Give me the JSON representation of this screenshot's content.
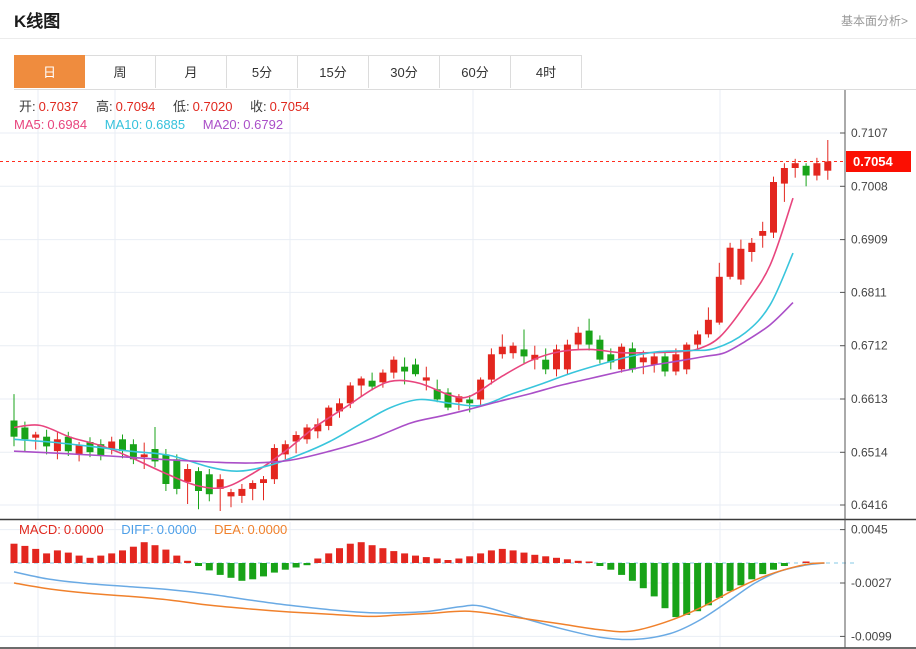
{
  "header": {
    "title": "K线图",
    "link": "基本面分析>"
  },
  "tabs": {
    "items": [
      "日",
      "周",
      "月",
      "5分",
      "15分",
      "30分",
      "60分",
      "4时"
    ],
    "selected": "日"
  },
  "legend": {
    "open_label": "开:",
    "open": "0.7037",
    "high_label": "高:",
    "high": "0.7094",
    "low_label": "低:",
    "low": "0.7020",
    "close_label": "收:",
    "close": "0.7054",
    "ma5_label": "MA5:",
    "ma5": "0.6984",
    "ma10_label": "MA10:",
    "ma10": "0.6885",
    "ma20_label": "MA20:",
    "ma20": "0.6792",
    "macd_label": "MACD:",
    "macd": "0.0000",
    "diff_label": "DIFF:",
    "diff": "0.0000",
    "dea_label": "DEA:",
    "dea": "0.0000"
  },
  "colors": {
    "up": "#e3261f",
    "down": "#18a318",
    "ma5": "#e8457e",
    "ma10": "#38c5dc",
    "ma20": "#aa4fc8",
    "diff": "#6aaae4",
    "dea": "#f0812c",
    "marker_bg": "#fb0f02",
    "marker_text": "#ffffff",
    "tab_accent": "#ef8c3e",
    "grid": "#e9eef4",
    "axis": "#555555",
    "divider": "#3c3c3c",
    "price_line": "#ff2d1e",
    "zero_line": "#85c9e6"
  },
  "chart_data": [
    {
      "type": "candlestick",
      "panel": "main",
      "y_axis_ticks": [
        0.7107,
        0.7008,
        0.6909,
        0.6811,
        0.6712,
        0.6613,
        0.6514,
        0.6416
      ],
      "last_price": 0.7054,
      "ohlc": [
        [
          0.6573,
          0.6622,
          0.6525,
          0.6543
        ],
        [
          0.656,
          0.6571,
          0.6516,
          0.6538
        ],
        [
          0.6541,
          0.6552,
          0.6519,
          0.6547
        ],
        [
          0.6543,
          0.6556,
          0.651,
          0.6525
        ],
        [
          0.6516,
          0.6551,
          0.6501,
          0.6538
        ],
        [
          0.6543,
          0.6552,
          0.6507,
          0.6516
        ],
        [
          0.651,
          0.6533,
          0.6497,
          0.6527
        ],
        [
          0.6533,
          0.6542,
          0.6505,
          0.6514
        ],
        [
          0.6529,
          0.6538,
          0.6499,
          0.6508
        ],
        [
          0.652,
          0.6543,
          0.651,
          0.6534
        ],
        [
          0.6538,
          0.6547,
          0.6503,
          0.6516
        ],
        [
          0.6529,
          0.6538,
          0.6492,
          0.6501
        ],
        [
          0.6505,
          0.6532,
          0.6483,
          0.651
        ],
        [
          0.652,
          0.6561,
          0.6486,
          0.6497
        ],
        [
          0.651,
          0.652,
          0.6442,
          0.6455
        ],
        [
          0.6501,
          0.651,
          0.6436,
          0.6446
        ],
        [
          0.6459,
          0.6492,
          0.6418,
          0.6483
        ],
        [
          0.6479,
          0.6486,
          0.6408,
          0.6442
        ],
        [
          0.6473,
          0.6483,
          0.6423,
          0.6436
        ],
        [
          0.6446,
          0.6473,
          0.6405,
          0.6464
        ],
        [
          0.6432,
          0.6446,
          0.6412,
          0.644
        ],
        [
          0.6433,
          0.6455,
          0.642,
          0.6446
        ],
        [
          0.6446,
          0.6462,
          0.6425,
          0.6457
        ],
        [
          0.6457,
          0.647,
          0.6425,
          0.6464
        ],
        [
          0.6464,
          0.6529,
          0.6455,
          0.6522
        ],
        [
          0.651,
          0.6536,
          0.6501,
          0.6529
        ],
        [
          0.6534,
          0.6553,
          0.6512,
          0.6546
        ],
        [
          0.6538,
          0.6566,
          0.653,
          0.656
        ],
        [
          0.6553,
          0.6577,
          0.654,
          0.6566
        ],
        [
          0.6563,
          0.6601,
          0.6555,
          0.6597
        ],
        [
          0.659,
          0.6614,
          0.6578,
          0.6605
        ],
        [
          0.6605,
          0.6644,
          0.6596,
          0.6638
        ],
        [
          0.6638,
          0.6655,
          0.6618,
          0.6651
        ],
        [
          0.6647,
          0.6662,
          0.6629,
          0.6636
        ],
        [
          0.6644,
          0.6668,
          0.6634,
          0.6662
        ],
        [
          0.6662,
          0.6692,
          0.6651,
          0.6686
        ],
        [
          0.6673,
          0.669,
          0.664,
          0.6664
        ],
        [
          0.6677,
          0.6688,
          0.6655,
          0.6659
        ],
        [
          0.6647,
          0.6673,
          0.6629,
          0.6653
        ],
        [
          0.6631,
          0.6649,
          0.6607,
          0.6612
        ],
        [
          0.6625,
          0.6633,
          0.6592,
          0.6597
        ],
        [
          0.6607,
          0.6622,
          0.6592,
          0.6618
        ],
        [
          0.6612,
          0.662,
          0.6588,
          0.6605
        ],
        [
          0.6612,
          0.6653,
          0.6601,
          0.6649
        ],
        [
          0.6649,
          0.6707,
          0.664,
          0.6696
        ],
        [
          0.6696,
          0.6733,
          0.6688,
          0.671
        ],
        [
          0.6698,
          0.6718,
          0.6688,
          0.6712
        ],
        [
          0.6705,
          0.6742,
          0.6677,
          0.6692
        ],
        [
          0.6686,
          0.6712,
          0.6668,
          0.6695
        ],
        [
          0.6686,
          0.6707,
          0.6659,
          0.6668
        ],
        [
          0.6668,
          0.6714,
          0.6655,
          0.6705
        ],
        [
          0.6668,
          0.6723,
          0.6659,
          0.6714
        ],
        [
          0.6714,
          0.6747,
          0.6705,
          0.6736
        ],
        [
          0.674,
          0.6762,
          0.6703,
          0.6714
        ],
        [
          0.6723,
          0.6731,
          0.6679,
          0.6686
        ],
        [
          0.6696,
          0.6707,
          0.6668,
          0.6681
        ],
        [
          0.6668,
          0.6716,
          0.6662,
          0.671
        ],
        [
          0.6707,
          0.6718,
          0.6662,
          0.6668
        ],
        [
          0.6681,
          0.6703,
          0.6659,
          0.669
        ],
        [
          0.6677,
          0.67,
          0.6662,
          0.6692
        ],
        [
          0.6692,
          0.6703,
          0.6655,
          0.6664
        ],
        [
          0.6664,
          0.6707,
          0.6657,
          0.6696
        ],
        [
          0.6668,
          0.6718,
          0.6659,
          0.6714
        ],
        [
          0.6714,
          0.674,
          0.6705,
          0.6733
        ],
        [
          0.6733,
          0.6783,
          0.6727,
          0.676
        ],
        [
          0.6755,
          0.6866,
          0.6751,
          0.684
        ],
        [
          0.684,
          0.6903,
          0.6835,
          0.6894
        ],
        [
          0.6835,
          0.6909,
          0.6825,
          0.6892
        ],
        [
          0.6886,
          0.6912,
          0.6868,
          0.6903
        ],
        [
          0.6916,
          0.6942,
          0.6894,
          0.6925
        ],
        [
          0.6922,
          0.7026,
          0.6912,
          0.7016
        ],
        [
          0.7013,
          0.7051,
          0.6979,
          0.7042
        ],
        [
          0.7042,
          0.7059,
          0.7024,
          0.7051
        ],
        [
          0.7046,
          0.7051,
          0.7008,
          0.7028
        ],
        [
          0.7028,
          0.7061,
          0.7019,
          0.7051
        ],
        [
          0.7037,
          0.7094,
          0.702,
          0.7054
        ]
      ],
      "overlays": [
        {
          "name": "MA5",
          "value": 0.6984,
          "points": [
            [
              0,
              0.656
            ],
            [
              2.4,
              0.6564
            ],
            [
              5.2,
              0.6542
            ],
            [
              7.9,
              0.6527
            ],
            [
              10.7,
              0.6505
            ],
            [
              13.5,
              0.6479
            ],
            [
              16.7,
              0.6453
            ],
            [
              19.4,
              0.6449
            ],
            [
              22.2,
              0.6477
            ],
            [
              25,
              0.6516
            ],
            [
              27.7,
              0.656
            ],
            [
              30.5,
              0.6597
            ],
            [
              33.3,
              0.6634
            ],
            [
              35.1,
              0.6647
            ],
            [
              37.4,
              0.6642
            ],
            [
              40.2,
              0.662
            ],
            [
              42,
              0.6618
            ],
            [
              44.8,
              0.6653
            ],
            [
              47.6,
              0.6684
            ],
            [
              50.3,
              0.6701
            ],
            [
              53.1,
              0.6705
            ],
            [
              55.9,
              0.6699
            ],
            [
              58.6,
              0.6699
            ],
            [
              61.4,
              0.6701
            ],
            [
              63.2,
              0.6707
            ],
            [
              65.1,
              0.6729
            ],
            [
              67.4,
              0.6788
            ],
            [
              69.7,
              0.6862
            ],
            [
              71.8,
              0.6986
            ]
          ]
        },
        {
          "name": "MA10",
          "value": 0.6885,
          "points": [
            [
              0,
              0.6538
            ],
            [
              3.3,
              0.6533
            ],
            [
              7,
              0.6525
            ],
            [
              10.7,
              0.6516
            ],
            [
              14.4,
              0.6508
            ],
            [
              18.1,
              0.6486
            ],
            [
              20.8,
              0.6479
            ],
            [
              23.6,
              0.649
            ],
            [
              26.4,
              0.651
            ],
            [
              29.1,
              0.6534
            ],
            [
              31.9,
              0.6566
            ],
            [
              34.7,
              0.6597
            ],
            [
              37.4,
              0.6612
            ],
            [
              40.2,
              0.6605
            ],
            [
              43,
              0.6601
            ],
            [
              45.7,
              0.6621
            ],
            [
              48.5,
              0.664
            ],
            [
              51.2,
              0.666
            ],
            [
              54,
              0.6677
            ],
            [
              56.8,
              0.6692
            ],
            [
              59.5,
              0.6701
            ],
            [
              62.3,
              0.6703
            ],
            [
              64.6,
              0.6707
            ],
            [
              67.4,
              0.6736
            ],
            [
              69.7,
              0.6788
            ],
            [
              71.8,
              0.6884
            ]
          ]
        },
        {
          "name": "MA20",
          "value": 0.6792,
          "points": [
            [
              0,
              0.6516
            ],
            [
              4.2,
              0.6512
            ],
            [
              8.8,
              0.6507
            ],
            [
              13.5,
              0.6501
            ],
            [
              18.1,
              0.6496
            ],
            [
              21.8,
              0.6494
            ],
            [
              25.4,
              0.6499
            ],
            [
              29.1,
              0.6516
            ],
            [
              32.8,
              0.6538
            ],
            [
              36.5,
              0.6568
            ],
            [
              39.3,
              0.6581
            ],
            [
              42,
              0.6594
            ],
            [
              44.8,
              0.6609
            ],
            [
              47.6,
              0.6623
            ],
            [
              50.3,
              0.6638
            ],
            [
              53.1,
              0.6651
            ],
            [
              55.9,
              0.6664
            ],
            [
              58.6,
              0.6675
            ],
            [
              61.4,
              0.6684
            ],
            [
              63.7,
              0.6692
            ],
            [
              65.5,
              0.6699
            ],
            [
              67.4,
              0.672
            ],
            [
              69.7,
              0.6751
            ],
            [
              71.8,
              0.6792
            ]
          ]
        }
      ]
    },
    {
      "type": "bar",
      "panel": "macd",
      "y_axis_ticks": [
        0.0045,
        -0.0027,
        -0.0099
      ],
      "zero_line": 0,
      "histogram": [
        0.0026,
        0.0023,
        0.0019,
        0.0013,
        0.0017,
        0.0014,
        0.001,
        0.0007,
        0.001,
        0.0013,
        0.0017,
        0.0022,
        0.0028,
        0.0024,
        0.0018,
        0.001,
        0.0003,
        -0.0004,
        -0.001,
        -0.0016,
        -0.002,
        -0.0024,
        -0.0022,
        -0.0018,
        -0.0013,
        -0.0009,
        -0.0006,
        -0.0003,
        0.0006,
        0.0013,
        0.002,
        0.0026,
        0.0028,
        0.0024,
        0.002,
        0.0016,
        0.0013,
        0.001,
        0.0008,
        0.0006,
        0.0004,
        0.0006,
        0.0009,
        0.0013,
        0.0017,
        0.0019,
        0.0017,
        0.0014,
        0.0011,
        0.0009,
        0.0007,
        0.0005,
        0.0003,
        0.0001,
        -0.0004,
        -0.0009,
        -0.0016,
        -0.0024,
        -0.0034,
        -0.0045,
        -0.0061,
        -0.0073,
        -0.007,
        -0.0065,
        -0.0057,
        -0.0047,
        -0.0038,
        -0.003,
        -0.0022,
        -0.0015,
        -0.0009,
        -0.0004,
        0.0,
        0.0001,
        0.0,
        0.0
      ],
      "lines": [
        {
          "name": "DIFF",
          "value": 0.0,
          "points": [
            [
              0,
              -0.0012
            ],
            [
              3.3,
              -0.0022
            ],
            [
              7,
              -0.0028
            ],
            [
              10.7,
              -0.0032
            ],
            [
              14.4,
              -0.0036
            ],
            [
              18.1,
              -0.0042
            ],
            [
              21.8,
              -0.005
            ],
            [
              25.4,
              -0.0057
            ],
            [
              29.1,
              -0.0063
            ],
            [
              32.8,
              -0.0067
            ],
            [
              35.6,
              -0.0067
            ],
            [
              38.3,
              -0.0065
            ],
            [
              41.1,
              -0.0059
            ],
            [
              43,
              -0.0058
            ],
            [
              46.6,
              -0.0073
            ],
            [
              50.3,
              -0.0088
            ],
            [
              54,
              -0.01
            ],
            [
              57.2,
              -0.0103
            ],
            [
              60.5,
              -0.0095
            ],
            [
              63.2,
              -0.0077
            ],
            [
              66,
              -0.005
            ],
            [
              68.3,
              -0.0027
            ],
            [
              70.6,
              -0.0011
            ],
            [
              72.9,
              -0.0003
            ],
            [
              74.7,
              0
            ]
          ]
        },
        {
          "name": "DEA",
          "value": 0.0,
          "points": [
            [
              0,
              -0.0027
            ],
            [
              3.3,
              -0.0035
            ],
            [
              7,
              -0.0041
            ],
            [
              10.7,
              -0.0045
            ],
            [
              14.4,
              -0.005
            ],
            [
              18.1,
              -0.0057
            ],
            [
              21.8,
              -0.0062
            ],
            [
              25.4,
              -0.0066
            ],
            [
              29.1,
              -0.0069
            ],
            [
              32.8,
              -0.0072
            ],
            [
              35.6,
              -0.007
            ],
            [
              38.3,
              -0.0068
            ],
            [
              42,
              -0.0065
            ],
            [
              46.6,
              -0.0074
            ],
            [
              50.3,
              -0.0082
            ],
            [
              54,
              -0.009
            ],
            [
              56.8,
              -0.0092
            ],
            [
              60,
              -0.008
            ],
            [
              63.2,
              -0.0061
            ],
            [
              66,
              -0.0039
            ],
            [
              68.8,
              -0.002
            ],
            [
              71.5,
              -0.0007
            ],
            [
              73.4,
              -0.0001
            ],
            [
              74.7,
              0
            ]
          ]
        }
      ]
    }
  ]
}
